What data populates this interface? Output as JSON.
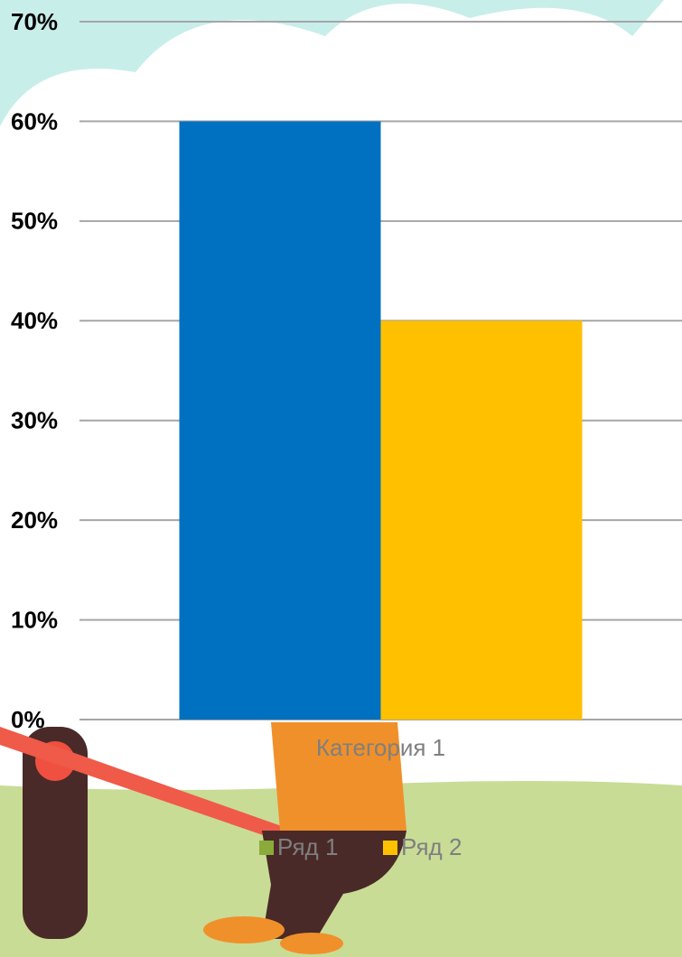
{
  "chart_data": {
    "type": "bar",
    "categories": [
      "Категория 1"
    ],
    "series": [
      {
        "name": "Ряд 1",
        "color": "#0070c0",
        "legend_color": "#8aab3a",
        "values": [
          60
        ]
      },
      {
        "name": "Ряд 2",
        "color": "#ffc000",
        "legend_color": "#ffc000",
        "values": [
          40
        ]
      }
    ],
    "ylim": [
      0,
      70
    ],
    "yticks": [
      {
        "value": 0,
        "label": "0%"
      },
      {
        "value": 10,
        "label": "10%"
      },
      {
        "value": 20,
        "label": "20%"
      },
      {
        "value": 30,
        "label": "30%"
      },
      {
        "value": 40,
        "label": "40%"
      },
      {
        "value": 50,
        "label": "50%"
      },
      {
        "value": 60,
        "label": "60%"
      },
      {
        "value": 70,
        "label": "70%"
      }
    ],
    "grid": true,
    "legend": "bottom"
  }
}
